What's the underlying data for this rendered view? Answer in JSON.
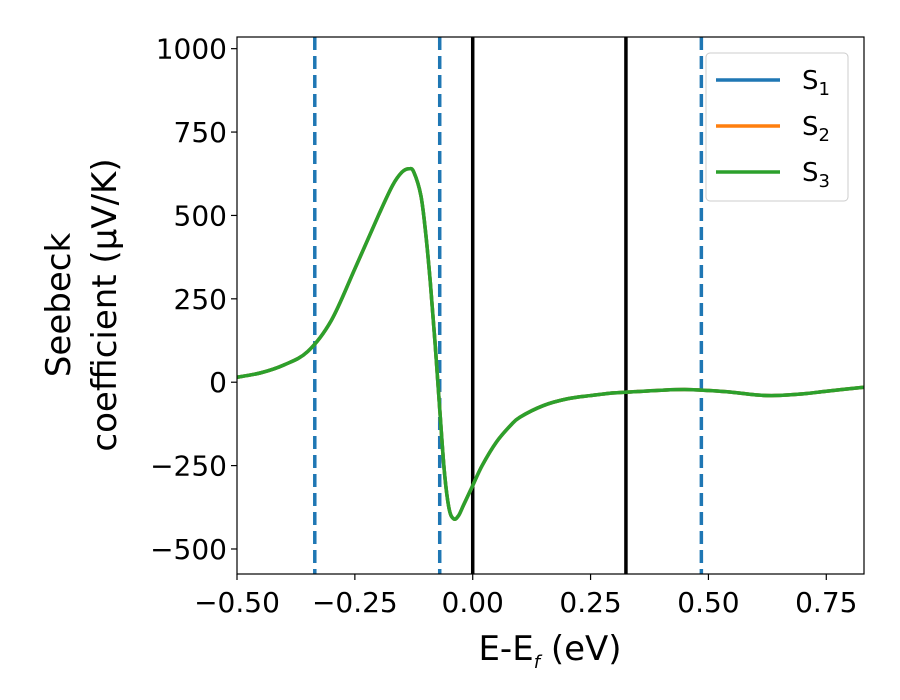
{
  "chart_data": {
    "type": "line",
    "xlabel": {
      "main": "E-E",
      "sub": "f",
      "tail": " (eV)"
    },
    "ylabel": {
      "line1": "Seebeck",
      "line2": "coefficient  (μV/K)"
    },
    "xlim": [
      -0.5,
      0.83
    ],
    "ylim": [
      -575,
      1035
    ],
    "xticks": [
      -0.5,
      -0.25,
      0.0,
      0.25,
      0.5,
      0.75
    ],
    "xtick_labels": [
      "−0.50",
      "−0.25",
      "0.00",
      "0.25",
      "0.50",
      "0.75"
    ],
    "yticks": [
      -500,
      -250,
      0,
      250,
      500,
      750,
      1000
    ],
    "ytick_labels": [
      "−500",
      "−250",
      "0",
      "250",
      "500",
      "750",
      "1000"
    ],
    "legend_position": "top-right",
    "series": [
      {
        "label": "S",
        "sub": "1",
        "color": "#1f77b4"
      },
      {
        "label": "S",
        "sub": "2",
        "color": "#ff7f0e"
      },
      {
        "label": "S",
        "sub": "3",
        "color": "#2ca02c"
      }
    ],
    "x": [
      -0.5,
      -0.45,
      -0.4,
      -0.35,
      -0.3,
      -0.25,
      -0.2,
      -0.17,
      -0.15,
      -0.135,
      -0.125,
      -0.11,
      -0.1,
      -0.09,
      -0.08,
      -0.07,
      -0.06,
      -0.05,
      -0.04,
      -0.03,
      -0.02,
      -0.01,
      0.0,
      0.02,
      0.05,
      0.08,
      0.1,
      0.15,
      0.2,
      0.25,
      0.3,
      0.35,
      0.4,
      0.45,
      0.5,
      0.55,
      0.6,
      0.64,
      0.7,
      0.75,
      0.83
    ],
    "y": [
      15,
      28,
      52,
      92,
      185,
      340,
      500,
      590,
      630,
      640,
      630,
      560,
      450,
      300,
      120,
      -80,
      -270,
      -380,
      -410,
      -400,
      -370,
      -340,
      -310,
      -250,
      -180,
      -130,
      -105,
      -70,
      -50,
      -40,
      -32,
      -28,
      -24,
      -22,
      -25,
      -30,
      -38,
      -40,
      -35,
      -27,
      -15
    ],
    "vlines_dashed": {
      "x": [
        -0.335,
        -0.07,
        0.485
      ],
      "color": "#1f77b4"
    },
    "vlines_solid": {
      "x": [
        0.0,
        0.325
      ],
      "color": "#000000"
    }
  }
}
